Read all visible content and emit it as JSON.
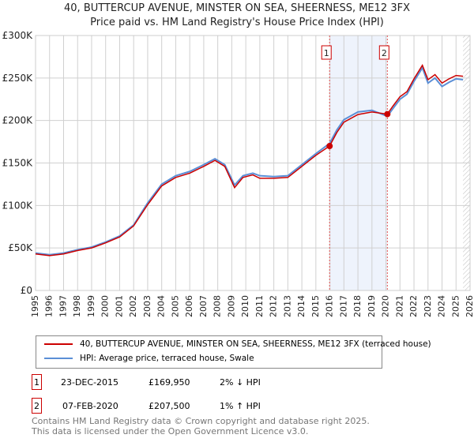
{
  "title": "40, BUTTERCUP AVENUE, MINSTER ON SEA, SHEERNESS, ME12 3FX",
  "subtitle": "Price paid vs. HM Land Registry's House Price Index (HPI)",
  "chart_data": {
    "type": "line",
    "xlim": [
      1995,
      2026
    ],
    "ylim": [
      0,
      300000
    ],
    "yticks": [
      0,
      50000,
      100000,
      150000,
      200000,
      250000,
      300000
    ],
    "ytick_labels": [
      "£0",
      "£50K",
      "£100K",
      "£150K",
      "£200K",
      "£250K",
      "£300K"
    ],
    "xticks": [
      1995,
      1996,
      1997,
      1998,
      1999,
      2000,
      2001,
      2002,
      2003,
      2004,
      2005,
      2006,
      2007,
      2008,
      2009,
      2010,
      2011,
      2012,
      2013,
      2014,
      2015,
      2016,
      2017,
      2018,
      2019,
      2020,
      2021,
      2022,
      2023,
      2024,
      2025,
      2026
    ],
    "series": [
      {
        "name": "40, BUTTERCUP AVENUE, MINSTER ON SEA, SHEERNESS, ME12 3FX (terraced house)",
        "color": "#cc0000",
        "x": [
          1995,
          1996,
          1997,
          1998,
          1999,
          2000,
          2001,
          2002,
          2003,
          2004,
          2005,
          2006,
          2007,
          2007.8,
          2008.5,
          2009.2,
          2009.8,
          2010.5,
          2011,
          2012,
          2013,
          2014,
          2015,
          2015.98,
          2016.5,
          2017,
          2018,
          2019,
          2020.1,
          2020.5,
          2021,
          2021.5,
          2022,
          2022.6,
          2023,
          2023.5,
          2024,
          2024.5,
          2025,
          2025.5
        ],
        "y": [
          43000,
          41000,
          43000,
          47000,
          50000,
          56000,
          63000,
          76000,
          101000,
          123000,
          133000,
          138000,
          146000,
          153000,
          146000,
          121000,
          133000,
          136000,
          132000,
          132000,
          133000,
          146000,
          159000,
          169950,
          186000,
          198000,
          207000,
          210000,
          207500,
          217000,
          228000,
          234000,
          249000,
          265000,
          248000,
          254000,
          244000,
          249000,
          253000,
          252000
        ]
      },
      {
        "name": "HPI: Average price, terraced house, Swale",
        "color": "#5b8fd6",
        "x": [
          1995,
          1996,
          1997,
          1998,
          1999,
          2000,
          2001,
          2002,
          2003,
          2004,
          2005,
          2006,
          2007,
          2007.8,
          2008.5,
          2009.2,
          2009.8,
          2010.5,
          2011,
          2012,
          2013,
          2014,
          2015,
          2015.98,
          2016.5,
          2017,
          2018,
          2019,
          2020.1,
          2020.5,
          2021,
          2021.5,
          2022,
          2022.6,
          2023,
          2023.5,
          2024,
          2024.5,
          2025,
          2025.5
        ],
        "y": [
          44000,
          42000,
          44000,
          48000,
          51000,
          57000,
          64000,
          77000,
          103000,
          125000,
          135000,
          140000,
          148000,
          155000,
          148000,
          124000,
          135000,
          138000,
          135000,
          134000,
          135000,
          148000,
          161000,
          173000,
          189000,
          201000,
          210000,
          212000,
          205000,
          214000,
          225000,
          231000,
          246000,
          262000,
          244000,
          250000,
          240000,
          245000,
          249000,
          248000
        ]
      }
    ],
    "events": [
      {
        "label": "1",
        "x": 2015.98,
        "y": 169950
      },
      {
        "label": "2",
        "x": 2020.1,
        "y": 207500
      }
    ],
    "hatch_from": 2025.5
  },
  "legend": {
    "property": "40, BUTTERCUP AVENUE, MINSTER ON SEA, SHEERNESS, ME12 3FX (terraced house)",
    "hpi": "HPI: Average price, terraced house, Swale"
  },
  "table": [
    {
      "num": "1",
      "date": "23-DEC-2015",
      "price": "£169,950",
      "hpi": "2% ↓ HPI"
    },
    {
      "num": "2",
      "date": "07-FEB-2020",
      "price": "£207,500",
      "hpi": "1% ↑ HPI"
    }
  ],
  "footer": [
    "Contains HM Land Registry data © Crown copyright and database right 2025.",
    "This data is licensed under the Open Government Licence v3.0."
  ]
}
